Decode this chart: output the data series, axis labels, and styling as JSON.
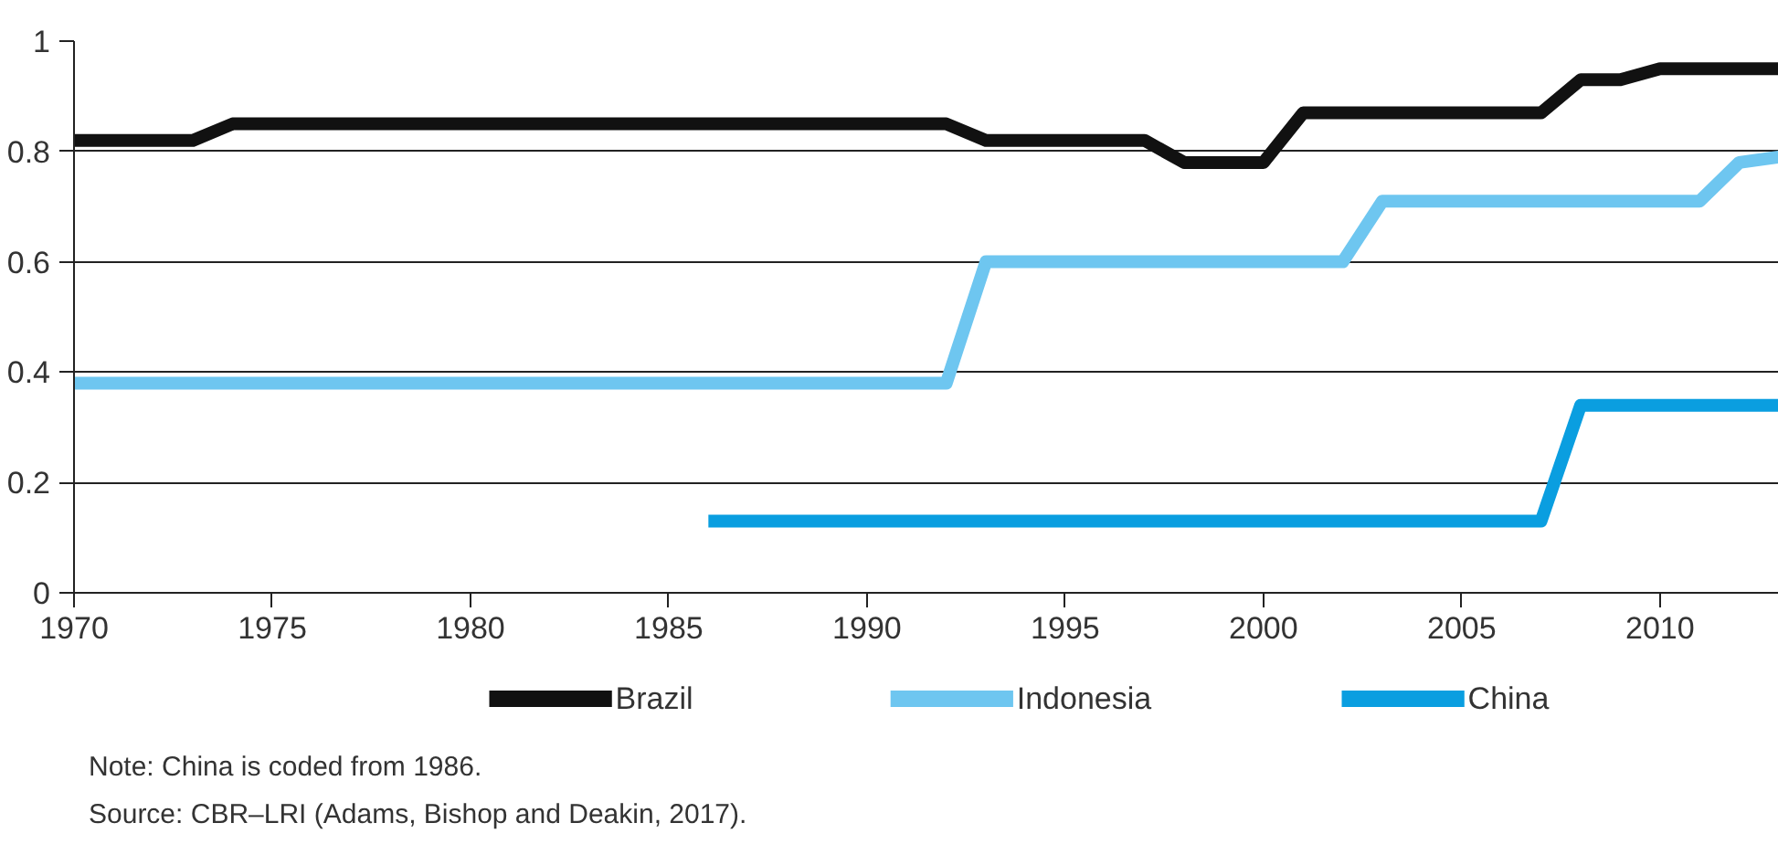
{
  "chart_data": {
    "type": "line",
    "x": [
      1970,
      1971,
      1972,
      1973,
      1974,
      1975,
      1976,
      1977,
      1978,
      1979,
      1980,
      1981,
      1982,
      1983,
      1984,
      1985,
      1986,
      1987,
      1988,
      1989,
      1990,
      1991,
      1992,
      1993,
      1994,
      1995,
      1996,
      1997,
      1998,
      1999,
      2000,
      2001,
      2002,
      2003,
      2004,
      2005,
      2006,
      2007,
      2008,
      2009,
      2010,
      2011,
      2012,
      2013
    ],
    "series": [
      {
        "name": "Brazil",
        "color": "#111111",
        "values": [
          0.82,
          0.82,
          0.82,
          0.82,
          0.85,
          0.85,
          0.85,
          0.85,
          0.85,
          0.85,
          0.85,
          0.85,
          0.85,
          0.85,
          0.85,
          0.85,
          0.85,
          0.85,
          0.85,
          0.85,
          0.85,
          0.85,
          0.85,
          0.82,
          0.82,
          0.82,
          0.82,
          0.82,
          0.78,
          0.78,
          0.78,
          0.87,
          0.87,
          0.87,
          0.87,
          0.87,
          0.87,
          0.87,
          0.93,
          0.93,
          0.95,
          0.95,
          0.95,
          0.95
        ]
      },
      {
        "name": "Indonesia",
        "color": "#6ec6f0",
        "values": [
          0.38,
          0.38,
          0.38,
          0.38,
          0.38,
          0.38,
          0.38,
          0.38,
          0.38,
          0.38,
          0.38,
          0.38,
          0.38,
          0.38,
          0.38,
          0.38,
          0.38,
          0.38,
          0.38,
          0.38,
          0.38,
          0.38,
          0.38,
          0.6,
          0.6,
          0.6,
          0.6,
          0.6,
          0.6,
          0.6,
          0.6,
          0.6,
          0.6,
          0.71,
          0.71,
          0.71,
          0.71,
          0.71,
          0.71,
          0.71,
          0.71,
          0.71,
          0.78,
          0.79
        ]
      },
      {
        "name": "China",
        "color": "#0a9ee0",
        "values": [
          null,
          null,
          null,
          null,
          null,
          null,
          null,
          null,
          null,
          null,
          null,
          null,
          null,
          null,
          null,
          null,
          0.13,
          0.13,
          0.13,
          0.13,
          0.13,
          0.13,
          0.13,
          0.13,
          0.13,
          0.13,
          0.13,
          0.13,
          0.13,
          0.13,
          0.13,
          0.13,
          0.13,
          0.13,
          0.13,
          0.13,
          0.13,
          0.13,
          0.34,
          0.34,
          0.34,
          0.34,
          0.34,
          0.34
        ]
      }
    ],
    "xlim": [
      1970,
      2013
    ],
    "xticks": [
      1970,
      1975,
      1980,
      1985,
      1990,
      1995,
      2000,
      2005,
      2010
    ],
    "ylim": [
      0,
      1
    ],
    "yticks": [
      0,
      0.2,
      0.4,
      0.6,
      0.8,
      1
    ],
    "grid": "y",
    "legend": "bottom",
    "line_style": "solid",
    "annotations": [
      "Note: China is coded from 1986.",
      "Source: CBR–LRI (Adams, Bishop and Deakin, 2017)."
    ]
  }
}
